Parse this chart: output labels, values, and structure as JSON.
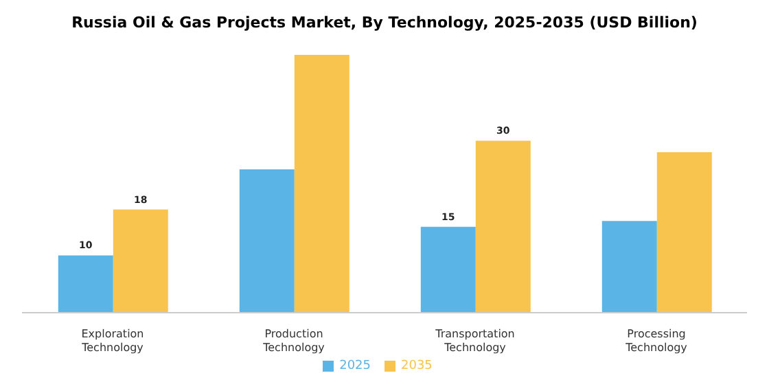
{
  "chart_data": {
    "type": "bar",
    "title": "Russia Oil & Gas Projects Market, By Technology, 2025-2035 (USD Billion)",
    "categories": [
      "Exploration Technology",
      "Production Technology",
      "Transportation Technology",
      "Processing Technology"
    ],
    "series": [
      {
        "name": "2025",
        "color": "#5ab4e5",
        "values": [
          10,
          25,
          15,
          16
        ],
        "value_labels": [
          "10",
          null,
          "15",
          null
        ]
      },
      {
        "name": "2035",
        "color": "#f9c44e",
        "values": [
          18,
          45,
          30,
          28
        ],
        "value_labels": [
          "18",
          null,
          "30",
          null
        ]
      }
    ],
    "legend": "bottom",
    "grid": false
  }
}
